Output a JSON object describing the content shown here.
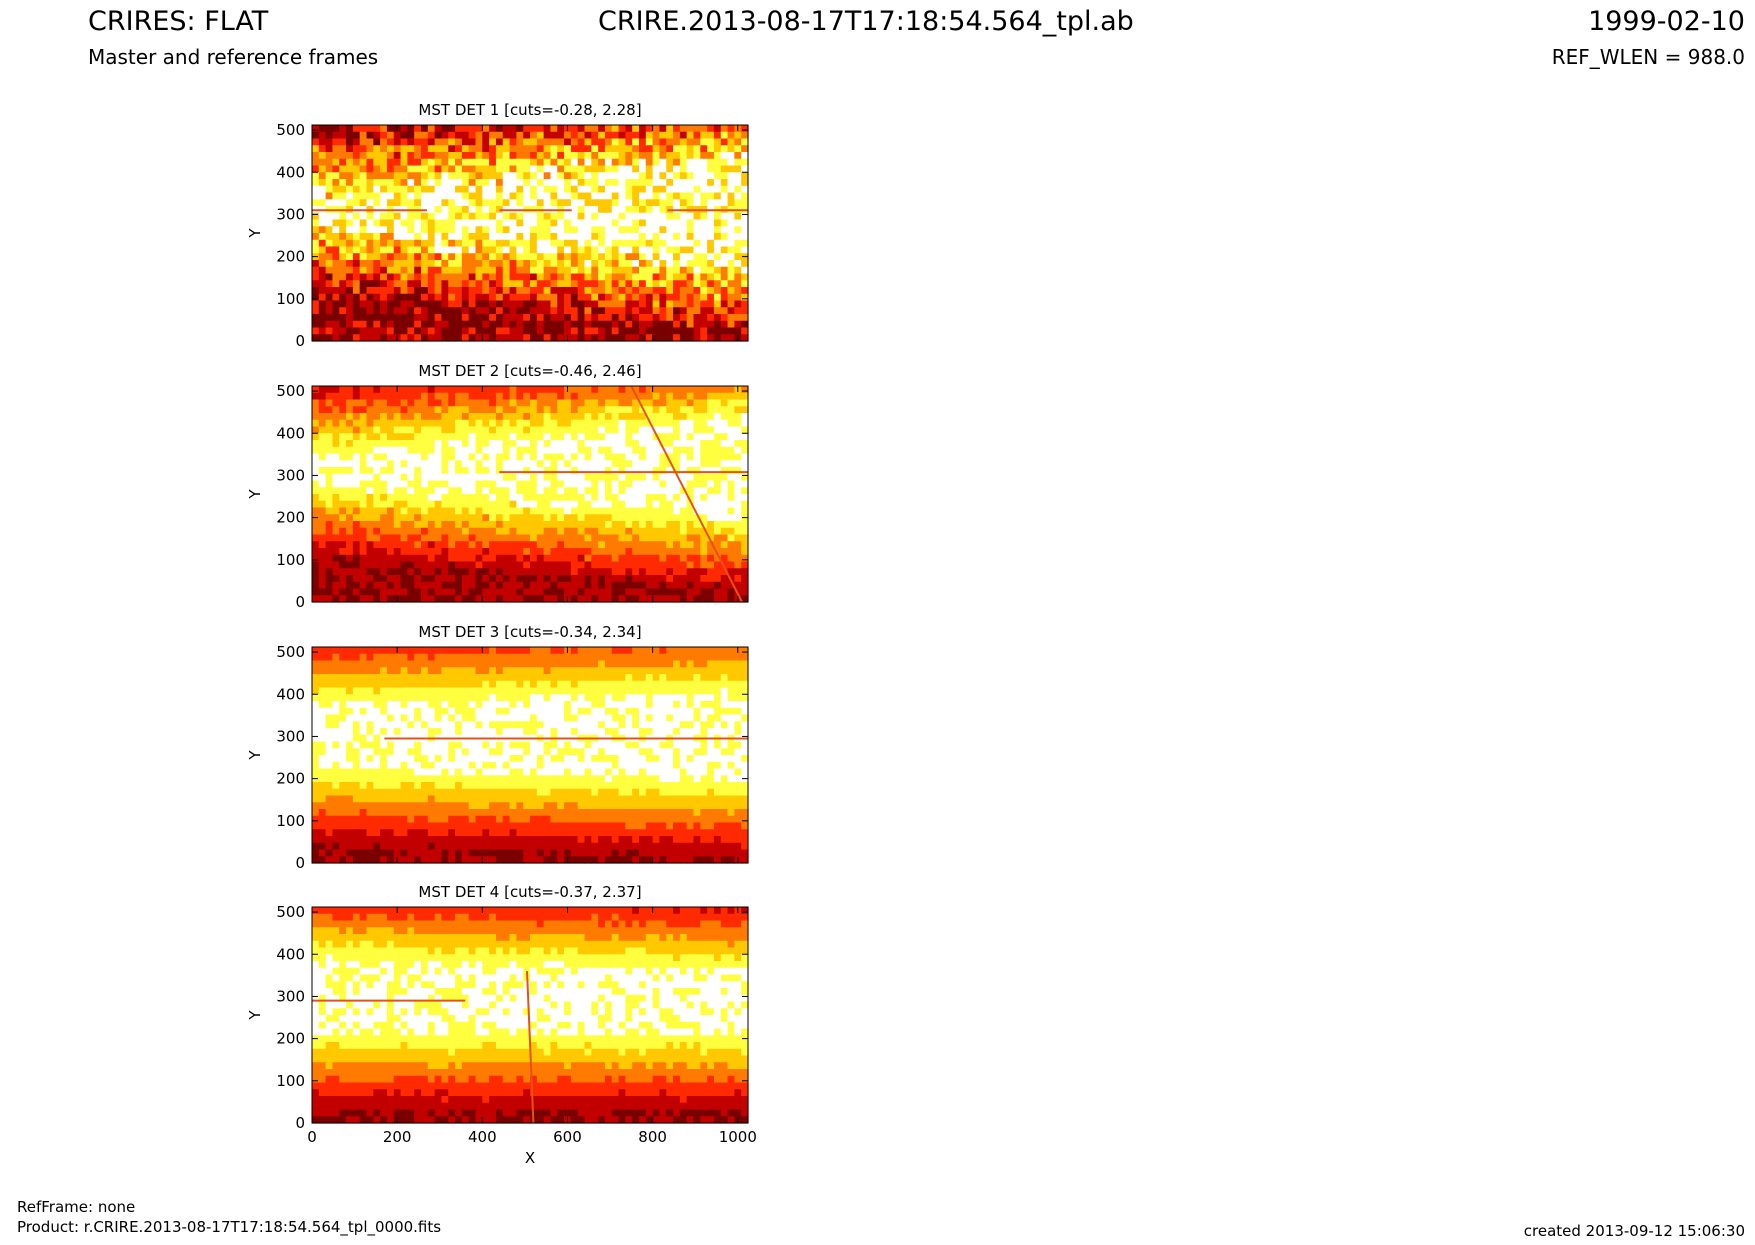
{
  "header": {
    "title_left": "CRIRES: FLAT",
    "subtitle_left": "Master and reference frames",
    "title_center": "CRIRE.2013-08-17T17:18:54.564_tpl.ab",
    "title_right": "1999-02-10",
    "subtitle_right": "REF_WLEN = 988.0"
  },
  "footer": {
    "refframe": "RefFrame: none",
    "product": "Product: r.CRIRE.2013-08-17T17:18:54.564_tpl_0000.fits",
    "created": "created 2013-09-12 15:06:30"
  },
  "colors": {
    "colormap": [
      "#7a0000",
      "#c20000",
      "#ff2a00",
      "#ff7a00",
      "#ffc800",
      "#ffff40",
      "#ffffff"
    ],
    "defect_line": "#e8501a"
  },
  "chart_data": [
    {
      "type": "heatmap",
      "title": "MST DET 1 [cuts=-0.28, 2.28]",
      "ylabel": "Y",
      "xlabel": "",
      "xlim": [
        0,
        1024
      ],
      "ylim": [
        0,
        512
      ],
      "yticks": [
        0,
        100,
        200,
        300,
        400,
        500
      ],
      "xticks": [],
      "band": {
        "center_x0": 310,
        "center_x1": 300,
        "halfwidth_x0": 10,
        "halfwidth_x1": 105,
        "noise": 0.55
      },
      "defect_lines": [
        {
          "y": 310,
          "x0": 0,
          "x1": 270
        },
        {
          "y": 310,
          "x0": 440,
          "x1": 610
        },
        {
          "y": 310,
          "x0": 835,
          "x1": 1024
        }
      ]
    },
    {
      "type": "heatmap",
      "title": "MST DET 2 [cuts=-0.46, 2.46]",
      "ylabel": "Y",
      "xlabel": "",
      "xlim": [
        0,
        1024
      ],
      "ylim": [
        0,
        512
      ],
      "yticks": [
        0,
        100,
        200,
        300,
        400,
        500
      ],
      "xticks": [],
      "band": {
        "center_x0": 315,
        "center_x1": 315,
        "halfwidth_x0": 25,
        "halfwidth_x1": 110,
        "noise": 0.2
      },
      "defect_lines": [
        {
          "y": 308,
          "x0": 440,
          "x1": 1024
        },
        {
          "x0": 750,
          "y0": 512,
          "x1": 1010,
          "y1": 0
        }
      ]
    },
    {
      "type": "heatmap",
      "title": "MST DET 3 [cuts=-0.34, 2.34]",
      "ylabel": "Y",
      "xlabel": "",
      "xlim": [
        0,
        1024
      ],
      "ylim": [
        0,
        512
      ],
      "yticks": [
        0,
        100,
        200,
        300,
        400,
        500
      ],
      "xticks": [],
      "band": {
        "center_x0": 300,
        "center_x1": 300,
        "halfwidth_x0": 70,
        "halfwidth_x1": 100,
        "noise": 0.08
      },
      "defect_lines": [
        {
          "y": 295,
          "x0": 170,
          "x1": 1024
        }
      ]
    },
    {
      "type": "heatmap",
      "title": "MST DET 4 [cuts=-0.37, 2.37]",
      "ylabel": "Y",
      "xlabel": "X",
      "xlim": [
        0,
        1024
      ],
      "ylim": [
        0,
        512
      ],
      "yticks": [
        0,
        100,
        200,
        300,
        400,
        500
      ],
      "xticks": [
        0,
        200,
        400,
        600,
        800,
        1000
      ],
      "band": {
        "center_x0": 300,
        "center_x1": 285,
        "halfwidth_x0": 80,
        "halfwidth_x1": 70,
        "noise": 0.1
      },
      "defect_lines": [
        {
          "y": 290,
          "x0": 0,
          "x1": 360
        },
        {
          "x0": 505,
          "y0": 360,
          "x1": 520,
          "y1": 0
        }
      ]
    }
  ]
}
